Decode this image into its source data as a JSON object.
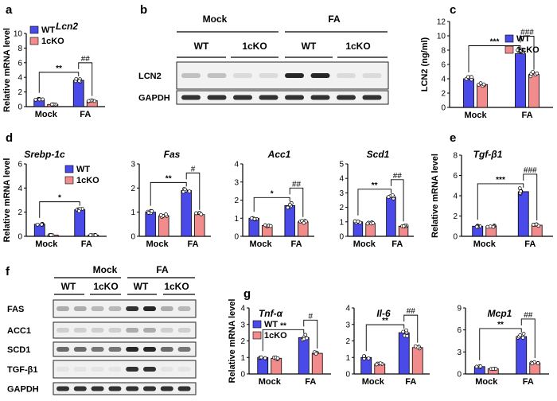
{
  "colors": {
    "wt": "#4a4ae8",
    "ko": "#f28b8b",
    "bar_stroke": "#000000",
    "point": "#ffffff"
  },
  "legend": {
    "wt": "WT",
    "ko": "1cKO"
  },
  "groups": [
    "Mock",
    "FA"
  ],
  "blot_b": {
    "label": "b",
    "groups": [
      "Mock",
      "FA"
    ],
    "genotypes": [
      "WT",
      "1cKO",
      "WT",
      "1cKO"
    ],
    "rows": [
      "LCN2",
      "GAPDH"
    ]
  },
  "blot_f": {
    "label": "f",
    "groups": [
      "Mock",
      "FA"
    ],
    "genotypes": [
      "WT",
      "1cKO",
      "WT",
      "1cKO"
    ],
    "rows": [
      "FAS",
      "ACC1",
      "SCD1",
      "TGF-β1",
      "GAPDH"
    ]
  },
  "chart_data": [
    {
      "panel": "a",
      "type": "bar",
      "title": "Lcn2",
      "ylabel": "Relative mRNA level",
      "categories": [
        "Mock",
        "FA"
      ],
      "ylim": [
        0,
        10
      ],
      "yticks": [
        0,
        2,
        4,
        6,
        8,
        10
      ],
      "series": [
        {
          "name": "WT",
          "values": [
            1.0,
            3.6
          ]
        },
        {
          "name": "1cKO",
          "values": [
            0.3,
            0.8
          ]
        }
      ],
      "annotations": [
        {
          "text": "**"
        },
        {
          "text": "##"
        }
      ]
    },
    {
      "panel": "c",
      "type": "bar",
      "title": "",
      "ylabel": "LCN2 (ng/ml)",
      "categories": [
        "Mock",
        "FA"
      ],
      "ylim": [
        0,
        12
      ],
      "yticks": [
        0,
        2,
        4,
        6,
        8,
        10,
        12
      ],
      "series": [
        {
          "name": "WT",
          "values": [
            4.0,
            7.5
          ]
        },
        {
          "name": "1cKO",
          "values": [
            3.2,
            4.6
          ]
        }
      ],
      "annotations": [
        {
          "text": "***"
        },
        {
          "text": "###"
        }
      ]
    },
    {
      "panel": "d",
      "type": "bar",
      "title": "Srebp-1c",
      "ylabel": "Relative mRNA level",
      "categories": [
        "Mock",
        "FA"
      ],
      "ylim": [
        0,
        6
      ],
      "yticks": [
        0,
        2,
        4,
        6
      ],
      "series": [
        {
          "name": "WT",
          "values": [
            1.0,
            2.2
          ]
        },
        {
          "name": "1cKO",
          "values": [
            0.1,
            0.1
          ]
        }
      ],
      "annotations": [
        {
          "text": "*"
        }
      ]
    },
    {
      "panel": "d",
      "type": "bar",
      "title": "Fas",
      "ylabel": "",
      "categories": [
        "Mock",
        "FA"
      ],
      "ylim": [
        0,
        3
      ],
      "yticks": [
        0,
        1,
        2,
        3
      ],
      "series": [
        {
          "name": "WT",
          "values": [
            1.0,
            1.9
          ]
        },
        {
          "name": "1cKO",
          "values": [
            0.85,
            0.9
          ]
        }
      ],
      "annotations": [
        {
          "text": "**"
        },
        {
          "text": "#"
        }
      ]
    },
    {
      "panel": "d",
      "type": "bar",
      "title": "Acc1",
      "ylabel": "",
      "categories": [
        "Mock",
        "FA"
      ],
      "ylim": [
        0,
        4
      ],
      "yticks": [
        0,
        1,
        2,
        3,
        4
      ],
      "series": [
        {
          "name": "WT",
          "values": [
            1.0,
            1.7
          ]
        },
        {
          "name": "1cKO",
          "values": [
            0.6,
            0.8
          ]
        }
      ],
      "annotations": [
        {
          "text": "*"
        },
        {
          "text": "##"
        }
      ]
    },
    {
      "panel": "d",
      "type": "bar",
      "title": "Scd1",
      "ylabel": "",
      "categories": [
        "Mock",
        "FA"
      ],
      "ylim": [
        0,
        5
      ],
      "yticks": [
        0,
        1,
        2,
        3,
        4,
        5
      ],
      "series": [
        {
          "name": "WT",
          "values": [
            1.0,
            2.7
          ]
        },
        {
          "name": "1cKO",
          "values": [
            0.9,
            0.7
          ]
        }
      ],
      "annotations": [
        {
          "text": "**"
        },
        {
          "text": "##"
        }
      ]
    },
    {
      "panel": "e",
      "type": "bar",
      "title": "Tgf-β1",
      "ylabel": "Relative mRNA level",
      "categories": [
        "Mock",
        "FA"
      ],
      "ylim": [
        0,
        8
      ],
      "yticks": [
        0,
        2,
        4,
        6,
        8
      ],
      "series": [
        {
          "name": "WT",
          "values": [
            1.0,
            4.4
          ]
        },
        {
          "name": "1cKO",
          "values": [
            1.0,
            1.1
          ]
        }
      ],
      "annotations": [
        {
          "text": "***"
        },
        {
          "text": "###"
        }
      ]
    },
    {
      "panel": "g",
      "type": "bar",
      "title": "Tnf-α",
      "ylabel": "Relative mRNA level",
      "categories": [
        "Mock",
        "FA"
      ],
      "ylim": [
        0,
        4
      ],
      "yticks": [
        0,
        1,
        2,
        3,
        4
      ],
      "series": [
        {
          "name": "WT",
          "values": [
            1.0,
            2.2
          ]
        },
        {
          "name": "1cKO",
          "values": [
            0.95,
            1.25
          ]
        }
      ],
      "annotations": [
        {
          "text": "**"
        },
        {
          "text": "#"
        }
      ]
    },
    {
      "panel": "g",
      "type": "bar",
      "title": "Il-6",
      "ylabel": "",
      "categories": [
        "Mock",
        "FA"
      ],
      "ylim": [
        0,
        4
      ],
      "yticks": [
        0,
        1,
        2,
        3,
        4
      ],
      "series": [
        {
          "name": "WT",
          "values": [
            1.0,
            2.5
          ]
        },
        {
          "name": "1cKO",
          "values": [
            0.6,
            1.6
          ]
        }
      ],
      "annotations": [
        {
          "text": "**"
        },
        {
          "text": "##"
        }
      ]
    },
    {
      "panel": "g",
      "type": "bar",
      "title": "Mcp1",
      "ylabel": "",
      "categories": [
        "Mock",
        "FA"
      ],
      "ylim": [
        0,
        9
      ],
      "yticks": [
        0,
        3,
        6,
        9
      ],
      "series": [
        {
          "name": "WT",
          "values": [
            1.0,
            5.1
          ]
        },
        {
          "name": "1cKO",
          "values": [
            0.7,
            1.5
          ]
        }
      ],
      "annotations": [
        {
          "text": "**"
        },
        {
          "text": "##"
        }
      ]
    }
  ]
}
